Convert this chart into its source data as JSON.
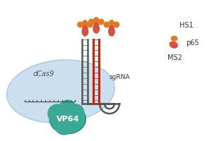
{
  "bg_color": "#ffffff",
  "dcas9_blob_color": "#ccdff0",
  "dcas9_blob_edge": "#a8c8e0",
  "vp64_color": "#3aaa96",
  "vp64_text_color": "#ffffff",
  "rna_color": "#555555",
  "red_color": "#cc2200",
  "orange_color": "#e07820",
  "pink_color": "#d85040",
  "dna_tick_color": "#555555",
  "label_dcas9": "dCas9",
  "label_vp64": "VP64",
  "label_sgrna": "sgRNA",
  "label_ms2": "MS2",
  "label_p65": "p65",
  "label_hs1": "HS1",
  "figsize": [
    3.0,
    2.0
  ],
  "dpi": 100
}
